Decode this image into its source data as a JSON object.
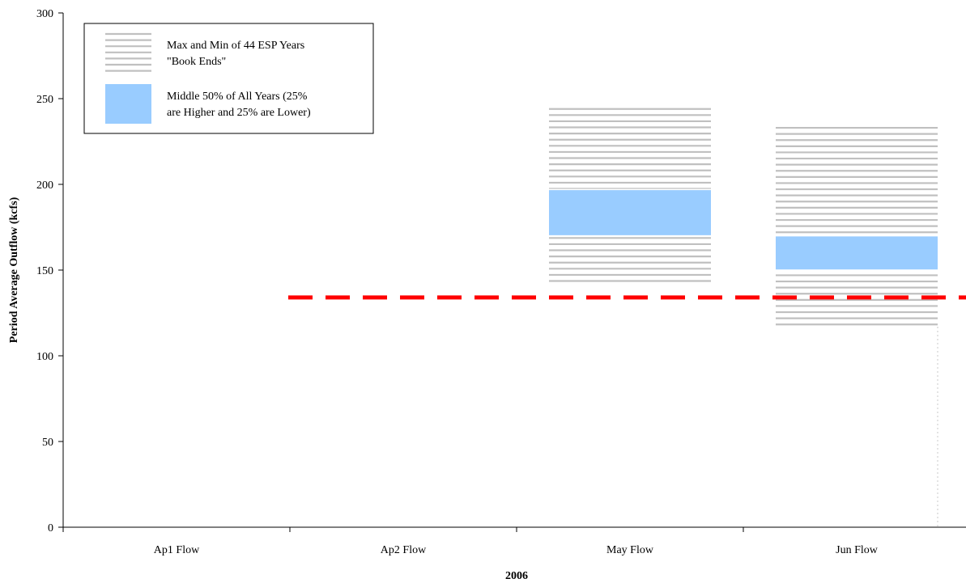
{
  "chart_data": {
    "type": "floating-bar",
    "xlabel": "2006",
    "ylabel": "Period Average Outflow (kcfs)",
    "ylim": [
      0,
      300
    ],
    "yticks": [
      0,
      50,
      100,
      150,
      200,
      250,
      300
    ],
    "categories": [
      "Ap1 Flow",
      "Ap2 Flow",
      "May Flow",
      "Jun Flow"
    ],
    "series": [
      {
        "name": "Max and Min of 44 ESP Years \"Book Ends\"",
        "ranges": [
          null,
          null,
          [
            142,
            244
          ],
          [
            117,
            233
          ]
        ]
      },
      {
        "name": "Middle 50% of All Years (25% are Higher and 25% are Lower)",
        "ranges": [
          null,
          null,
          [
            170,
            197
          ],
          [
            150,
            170
          ]
        ]
      }
    ],
    "reference_line": {
      "value": 134,
      "start_category_index": 1,
      "color": "#ff0000",
      "style": "dashed"
    },
    "legend": {
      "placement": "top-left",
      "entries": [
        {
          "line1": "Max and Min of 44 ESP Years",
          "line2": "\"Book Ends\""
        },
        {
          "line1": "Middle 50% of All Years (25%",
          "line2": "are Higher and 25% are Lower)"
        }
      ]
    },
    "colors": {
      "bookends": "#c0c0c0",
      "middle": "#99ccff",
      "reference": "#ff0000",
      "axis": "#000000"
    },
    "grid": false
  }
}
